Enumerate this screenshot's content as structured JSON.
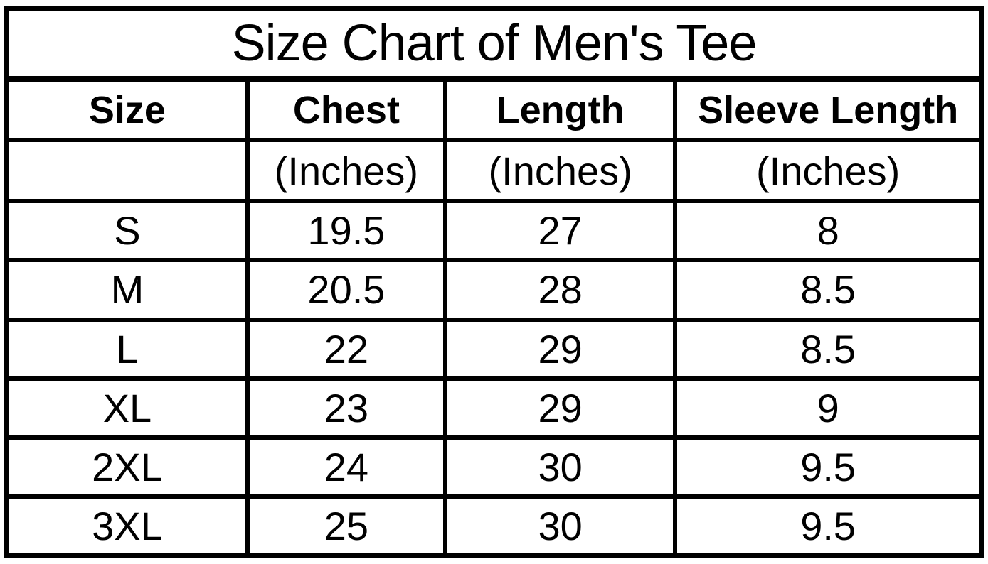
{
  "title": "Size Chart of Men's Tee",
  "headers": [
    "Size",
    "Chest",
    "Length",
    "Sleeve Length"
  ],
  "units": [
    "",
    "(Inches)",
    "(Inches)",
    "(Inches)"
  ],
  "rows": [
    [
      "S",
      "19.5",
      "27",
      "8"
    ],
    [
      "M",
      "20.5",
      "28",
      "8.5"
    ],
    [
      "L",
      "22",
      "29",
      "8.5"
    ],
    [
      "XL",
      "23",
      "29",
      "9"
    ],
    [
      "2XL",
      "24",
      "30",
      "9.5"
    ],
    [
      "3XL",
      "25",
      "30",
      "9.5"
    ]
  ],
  "colors": {
    "background": "#ffffff",
    "border": "#000000",
    "text": "#000000"
  },
  "chart_data": {
    "type": "table",
    "title": "Size Chart of Men's Tee",
    "columns": [
      "Size",
      "Chest (Inches)",
      "Length (Inches)",
      "Sleeve Length (Inches)"
    ],
    "rows": [
      [
        "S",
        19.5,
        27,
        8
      ],
      [
        "M",
        20.5,
        28,
        8.5
      ],
      [
        "L",
        22,
        29,
        8.5
      ],
      [
        "XL",
        23,
        29,
        9
      ],
      [
        "2XL",
        24,
        30,
        9.5
      ],
      [
        "3XL",
        25,
        30,
        9.5
      ]
    ],
    "grid": true,
    "notes": "Plain black-on-white bordered size table; title row merged across all 4 columns; units row beneath bold header row."
  }
}
